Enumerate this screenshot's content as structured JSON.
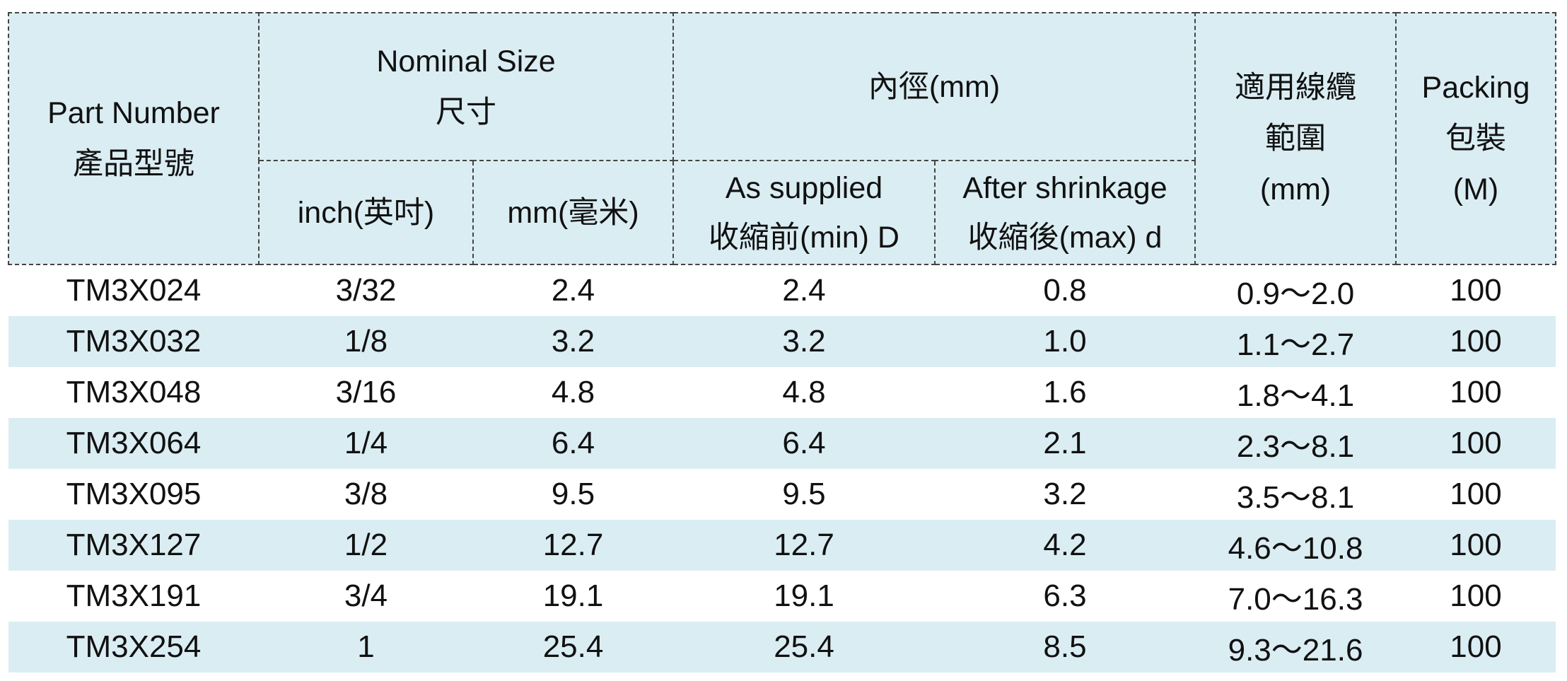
{
  "header": {
    "part_number": [
      "Part Number",
      "產品型號"
    ],
    "nominal_size": [
      "Nominal Size",
      "尺寸"
    ],
    "inner_diameter": "內徑(mm)",
    "cable_range": [
      "適用線纜",
      "範圍",
      "(mm)"
    ],
    "packing": [
      "Packing",
      "包裝",
      "(M)"
    ],
    "inch": "inch(英吋)",
    "mm": "mm(毫米)",
    "as_supplied": [
      "As supplied",
      "收縮前(min) D"
    ],
    "after_shrinkage": [
      "After shrinkage",
      "收縮後(max) d"
    ]
  },
  "table": {
    "rows": [
      [
        "TM3X024",
        "3/32",
        "2.4",
        "2.4",
        "0.8",
        "0.9～2.0",
        "100"
      ],
      [
        "TM3X032",
        "1/8",
        "3.2",
        "3.2",
        "1.0",
        "1.1～2.7",
        "100"
      ],
      [
        "TM3X048",
        "3/16",
        "4.8",
        "4.8",
        "1.6",
        "1.8～4.1",
        "100"
      ],
      [
        "TM3X064",
        "1/4",
        "6.4",
        "6.4",
        "2.1",
        "2.3～8.1",
        "100"
      ],
      [
        "TM3X095",
        "3/8",
        "9.5",
        "9.5",
        "3.2",
        "3.5～8.1",
        "100"
      ],
      [
        "TM3X127",
        "1/2",
        "12.7",
        "12.7",
        "4.2",
        "4.6～10.8",
        "100"
      ],
      [
        "TM3X191",
        "3/4",
        "19.1",
        "19.1",
        "6.3",
        "7.0～16.3",
        "100"
      ],
      [
        "TM3X254",
        "1",
        "25.4",
        "25.4",
        "8.5",
        "9.3～21.6",
        "100"
      ]
    ]
  }
}
